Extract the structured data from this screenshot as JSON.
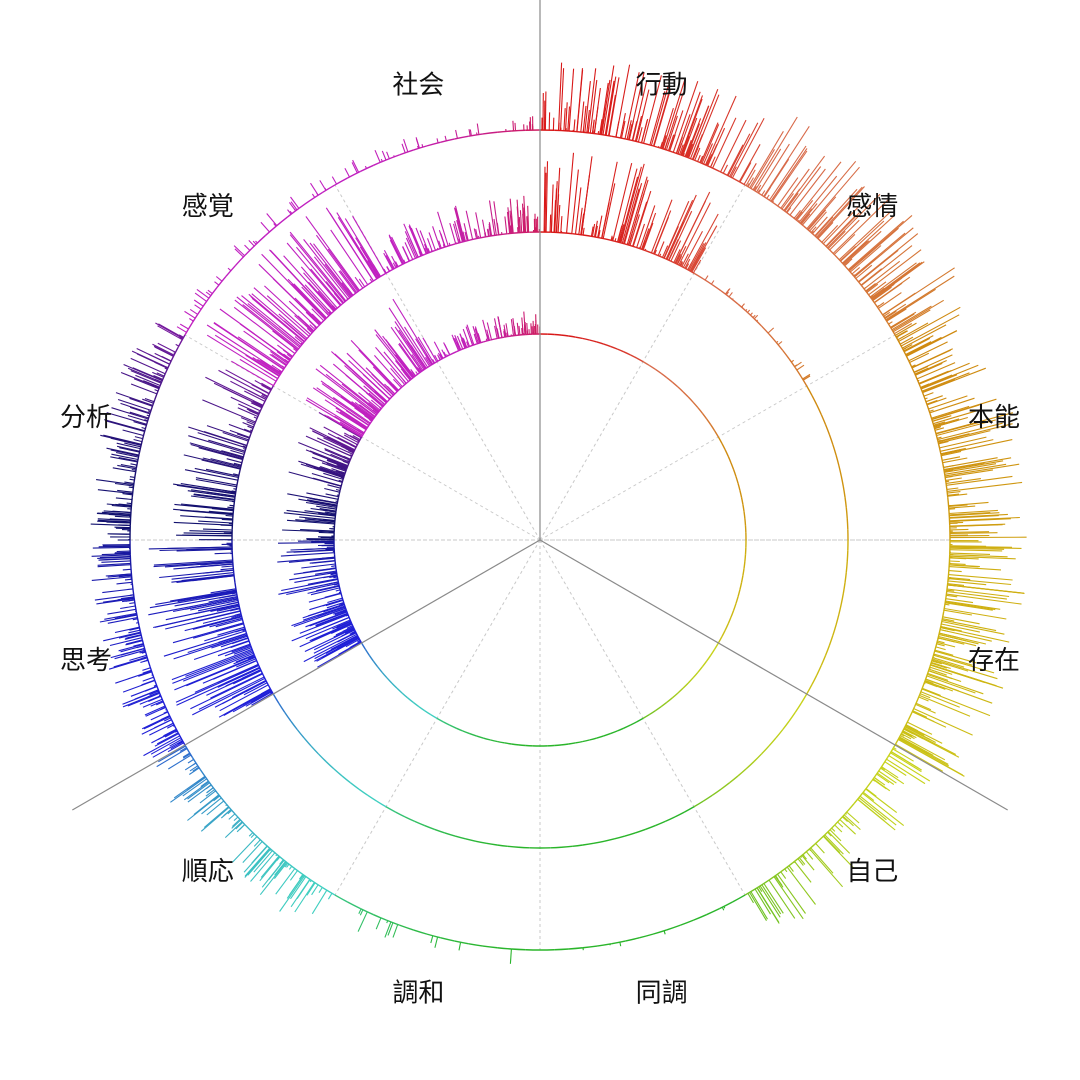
{
  "chart_data": {
    "type": "radial_bar",
    "sector_labels": [
      "行動",
      "感情",
      "本能",
      "存在",
      "自己",
      "同調",
      "調和",
      "順応",
      "思考",
      "分析",
      "感覚",
      "社会"
    ],
    "sector_colors": [
      "#d81818",
      "#d86a4a",
      "#cf8a10",
      "#cfae10",
      "#c8d21a",
      "#2ab52a",
      "#2ab52a",
      "#3fcfc0",
      "#2020d8",
      "#10106e",
      "#c020c0",
      "#c020c0"
    ],
    "rings": [
      {
        "name": "",
        "segments": [
          {
            "sector": "行動",
            "max_value": 86,
            "density": 0.9
          },
          {
            "sector": "感情",
            "max_value": 98,
            "density": 0.95
          },
          {
            "sector": "本能",
            "max_value": 92,
            "density": 1.0
          },
          {
            "sector": "存在",
            "max_value": 92,
            "density": 1.0
          },
          {
            "sector": "自己",
            "max_value": 60,
            "density": 0.6
          },
          {
            "sector": "同調",
            "max_value": 5,
            "density": 0.1
          },
          {
            "sector": "調和",
            "max_value": 30,
            "density": 0.1
          },
          {
            "sector": "順応",
            "max_value": 50,
            "density": 0.7
          },
          {
            "sector": "思考",
            "max_value": 48,
            "density": 1.0
          },
          {
            "sector": "分析",
            "max_value": 48,
            "density": 0.9
          },
          {
            "sector": "感覚",
            "max_value": 18,
            "density": 0.3
          },
          {
            "sector": "社会",
            "max_value": 16,
            "density": 0.3
          }
        ]
      },
      {
        "name": "",
        "segments": [
          {
            "sector": "行動",
            "max_value": 90,
            "density": 0.7
          },
          {
            "sector": "感情",
            "max_value": 10,
            "density": 0.2
          },
          {
            "sector": "本能",
            "max_value": 0,
            "density": 0.0
          },
          {
            "sector": "存在",
            "max_value": 0,
            "density": 0.0
          },
          {
            "sector": "自己",
            "max_value": 0,
            "density": 0.0
          },
          {
            "sector": "同調",
            "max_value": 0,
            "density": 0.0
          },
          {
            "sector": "調和",
            "max_value": 0,
            "density": 0.0
          },
          {
            "sector": "順応",
            "max_value": 0,
            "density": 0.0
          },
          {
            "sector": "思考",
            "max_value": 100,
            "density": 1.0
          },
          {
            "sector": "分析",
            "max_value": 70,
            "density": 0.8
          },
          {
            "sector": "感覚",
            "max_value": 100,
            "density": 0.9
          },
          {
            "sector": "社会",
            "max_value": 40,
            "density": 0.8
          }
        ]
      },
      {
        "name": "",
        "segments": [
          {
            "sector": "行動",
            "max_value": 0,
            "density": 0.0
          },
          {
            "sector": "感情",
            "max_value": 0,
            "density": 0.0
          },
          {
            "sector": "本能",
            "max_value": 0,
            "density": 0.0
          },
          {
            "sector": "存在",
            "max_value": 0,
            "density": 0.0
          },
          {
            "sector": "自己",
            "max_value": 0,
            "density": 0.0
          },
          {
            "sector": "同調",
            "max_value": 0,
            "density": 0.0
          },
          {
            "sector": "調和",
            "max_value": 0,
            "density": 0.0
          },
          {
            "sector": "順応",
            "max_value": 0,
            "density": 0.0
          },
          {
            "sector": "思考",
            "max_value": 80,
            "density": 0.9
          },
          {
            "sector": "分析",
            "max_value": 70,
            "density": 0.8
          },
          {
            "sector": "感覚",
            "max_value": 100,
            "density": 0.9
          },
          {
            "sector": "社会",
            "max_value": 30,
            "density": 0.7
          }
        ]
      }
    ],
    "dividers": [
      "社会|行動",
      "存在|自己",
      "順応|思考"
    ],
    "grid": true,
    "legend": "none"
  }
}
